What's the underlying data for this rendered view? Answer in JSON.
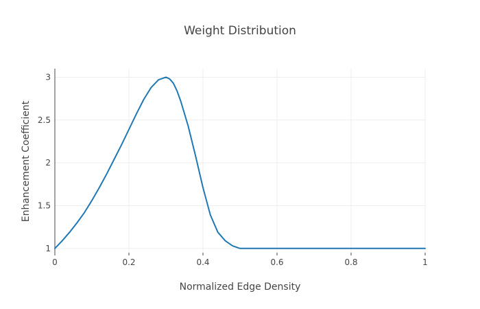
{
  "chart_data": {
    "type": "line",
    "title": "Weight Distribution",
    "xlabel": "Normalized Edge Density",
    "ylabel": "Enhancement Coefficient",
    "xlim": [
      0,
      1
    ],
    "ylim": [
      0.95,
      3.1
    ],
    "grid": true,
    "x_ticks": [
      0,
      0.2,
      0.4,
      0.6,
      0.8,
      1
    ],
    "x_tick_labels": [
      "0",
      "0.2",
      "0.4",
      "0.6",
      "0.8",
      "1"
    ],
    "y_ticks": [
      1,
      1.5,
      2,
      2.5,
      3
    ],
    "y_tick_labels": [
      "1",
      "1.5",
      "2",
      "2.5",
      "3"
    ],
    "series": [
      {
        "color": "#1f77b4",
        "x": [
          0,
          0.02,
          0.04,
          0.06,
          0.08,
          0.1,
          0.12,
          0.14,
          0.16,
          0.18,
          0.2,
          0.22,
          0.24,
          0.26,
          0.28,
          0.3,
          0.31,
          0.32,
          0.33,
          0.34,
          0.36,
          0.38,
          0.4,
          0.42,
          0.44,
          0.46,
          0.48,
          0.5,
          0.6,
          0.7,
          0.8,
          0.9,
          1.0
        ],
        "y": [
          1.0,
          1.09,
          1.19,
          1.3,
          1.42,
          1.56,
          1.71,
          1.87,
          2.04,
          2.21,
          2.39,
          2.57,
          2.74,
          2.88,
          2.97,
          3.0,
          2.98,
          2.93,
          2.84,
          2.72,
          2.43,
          2.08,
          1.71,
          1.39,
          1.19,
          1.09,
          1.03,
          1.0,
          1.0,
          1.0,
          1.0,
          1.0,
          1.0
        ]
      }
    ]
  }
}
